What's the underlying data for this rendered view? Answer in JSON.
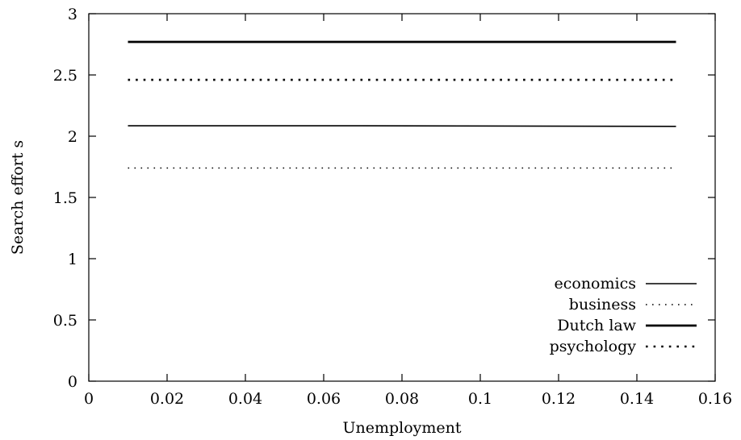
{
  "chart_data": {
    "type": "line",
    "title": "",
    "xlabel": "Unemployment",
    "ylabel": "Search effort s",
    "xlim": [
      0,
      0.16
    ],
    "ylim": [
      0,
      3
    ],
    "xticks": [
      0,
      0.02,
      0.04,
      0.06,
      0.08,
      0.1,
      0.12,
      0.14,
      0.16
    ],
    "yticks": [
      0,
      0.5,
      1,
      1.5,
      2,
      2.5,
      3
    ],
    "xtick_labels": [
      "0",
      "0.02",
      "0.04",
      "0.06",
      "0.08",
      "0.1",
      "0.12",
      "0.14",
      "0.16"
    ],
    "ytick_labels": [
      "0",
      "0.5",
      "1",
      "1.5",
      "2",
      "2.5",
      "3"
    ],
    "grid": false,
    "legend_position": "bottom-right",
    "series": [
      {
        "name": "economics",
        "style": "solid-thin",
        "color": "#000000",
        "x": [
          0.01,
          0.07,
          0.15
        ],
        "y": [
          2.085,
          2.085,
          2.08
        ]
      },
      {
        "name": "business",
        "style": "dotted-thin",
        "color": "#000000",
        "x": [
          0.01,
          0.15
        ],
        "y": [
          1.74,
          1.74
        ]
      },
      {
        "name": "Dutch law",
        "style": "solid-thick",
        "color": "#000000",
        "x": [
          0.01,
          0.15
        ],
        "y": [
          2.77,
          2.77
        ]
      },
      {
        "name": "psychology",
        "style": "dotted-thick",
        "color": "#000000",
        "x": [
          0.01,
          0.15
        ],
        "y": [
          2.46,
          2.46
        ]
      }
    ]
  }
}
